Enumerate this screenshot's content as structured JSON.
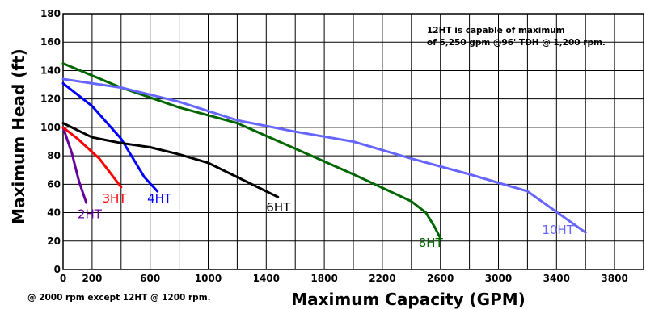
{
  "chart_data": {
    "type": "line",
    "xlabel": "Maximum Capacity (GPM)",
    "ylabel": "Maximum Head (ft)",
    "xlim": [
      0,
      4000
    ],
    "ylim": [
      0,
      180
    ],
    "x_ticks": [
      0,
      200,
      600,
      1000,
      1400,
      1800,
      2200,
      2600,
      3000,
      3400,
      3800
    ],
    "y_ticks": [
      0,
      20,
      40,
      60,
      80,
      100,
      120,
      140,
      160,
      180
    ],
    "grid": true,
    "annotation": [
      "12HT is capable of maximum",
      "of 6,250 gpm @96' TDH @ 1,200 rpm."
    ],
    "footnote": "@ 2000 rpm except 12HT @ 1200 rpm.",
    "series": [
      {
        "name": "2HT",
        "color": "#660099",
        "points": [
          [
            0,
            100
          ],
          [
            60,
            82
          ],
          [
            110,
            62
          ],
          [
            160,
            47
          ]
        ]
      },
      {
        "name": "3HT",
        "color": "#ff0000",
        "points": [
          [
            0,
            100
          ],
          [
            100,
            92
          ],
          [
            250,
            78
          ],
          [
            400,
            58
          ]
        ]
      },
      {
        "name": "4HT",
        "color": "#0000ff",
        "points": [
          [
            0,
            131
          ],
          [
            200,
            115
          ],
          [
            400,
            92
          ],
          [
            560,
            65
          ],
          [
            650,
            55
          ]
        ]
      },
      {
        "name": "6HT",
        "color": "#000000",
        "points": [
          [
            0,
            103
          ],
          [
            200,
            93
          ],
          [
            400,
            89
          ],
          [
            600,
            86
          ],
          [
            800,
            81
          ],
          [
            1000,
            75
          ],
          [
            1200,
            65
          ],
          [
            1400,
            55
          ],
          [
            1480,
            51
          ]
        ]
      },
      {
        "name": "8HT",
        "color": "#006600",
        "points": [
          [
            0,
            145
          ],
          [
            400,
            128
          ],
          [
            800,
            114
          ],
          [
            1200,
            103
          ],
          [
            1600,
            85
          ],
          [
            2000,
            67
          ],
          [
            2400,
            48
          ],
          [
            2500,
            40
          ],
          [
            2560,
            30
          ],
          [
            2600,
            22
          ]
        ]
      },
      {
        "name": "10HT",
        "color": "#6666ff",
        "points": [
          [
            0,
            134
          ],
          [
            400,
            128
          ],
          [
            800,
            118
          ],
          [
            1200,
            105
          ],
          [
            1600,
            97
          ],
          [
            2000,
            90
          ],
          [
            2400,
            78
          ],
          [
            2800,
            67
          ],
          [
            3200,
            55
          ],
          [
            3600,
            26
          ]
        ]
      }
    ],
    "series_labels": [
      {
        "series": "2HT",
        "text": "2HT",
        "x": 100,
        "y": 36
      },
      {
        "series": "3HT",
        "text": "3HT",
        "x": 270,
        "y": 47
      },
      {
        "series": "4HT",
        "text": "4HT",
        "x": 580,
        "y": 47
      },
      {
        "series": "6HT",
        "text": "6HT",
        "x": 1400,
        "y": 41
      },
      {
        "series": "8HT",
        "text": "8HT",
        "x": 2450,
        "y": 16
      },
      {
        "series": "10HT",
        "text": "10HT",
        "x": 3300,
        "y": 25
      }
    ]
  }
}
